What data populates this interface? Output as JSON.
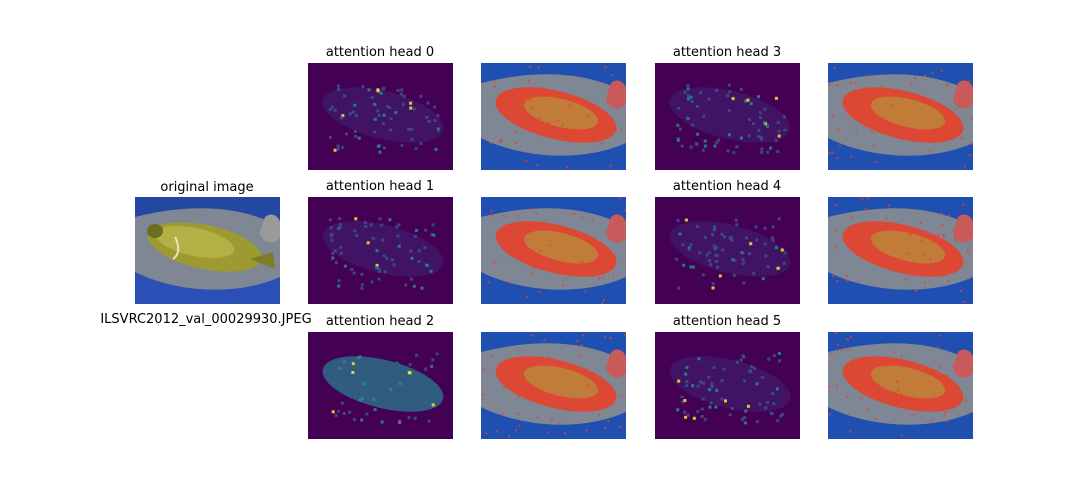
{
  "original": {
    "title": "original image",
    "filename": "ILSVRC2012_val_00029930.JPEG"
  },
  "heads": [
    {
      "title": "attention head 0"
    },
    {
      "title": "attention head 1"
    },
    {
      "title": "attention head 2"
    },
    {
      "title": "attention head 3"
    },
    {
      "title": "attention head 4"
    },
    {
      "title": "attention head 5"
    }
  ],
  "colors": {
    "viridis_low": "#440154",
    "viridis_mid": "#21918c",
    "viridis_high": "#fde725",
    "fish": "#a8a83a",
    "net_blue": "#1f4fb0",
    "overlay_red": "#e8412a"
  }
}
